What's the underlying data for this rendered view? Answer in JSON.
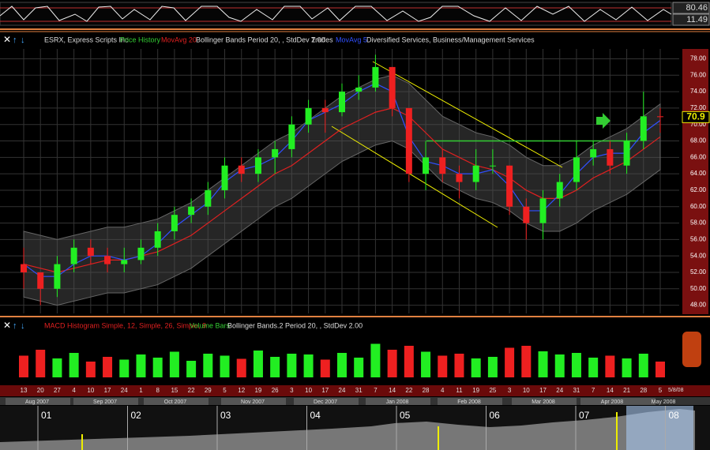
{
  "oscillator": {
    "upper_label": 80.46,
    "lower_label": 11.49
  },
  "toolbar_main": {
    "symbol": "ESRX, Express Scripts Inc",
    "price_history": "Price History",
    "bollinger": "Bollinger Bands Period 20, , StdDev 2.00",
    "trades": "Trades",
    "sector": "Diversified Services, Business/Management Services"
  },
  "chart_data": {
    "type": "candlestick",
    "grid": true,
    "categories": [
      "13",
      "20",
      "27",
      "4",
      "10",
      "17",
      "24",
      "1",
      "8",
      "15",
      "22",
      "29",
      "5",
      "12",
      "19",
      "26",
      "3",
      "10",
      "17",
      "24",
      "31",
      "7",
      "14",
      "22",
      "28",
      "4",
      "11",
      "19",
      "25",
      "3",
      "10",
      "17",
      "24",
      "31",
      "7",
      "14",
      "21",
      "28",
      "5"
    ],
    "open": [
      53,
      52,
      50,
      53,
      55,
      54,
      53,
      53.5,
      55,
      57,
      59,
      60,
      62,
      65,
      64,
      66,
      67,
      70,
      72,
      71.5,
      74,
      74.5,
      77,
      72,
      64,
      66,
      64,
      63,
      65,
      65,
      60,
      58,
      61,
      63,
      66,
      67,
      65,
      68,
      71
    ],
    "close": [
      52,
      50,
      53,
      55,
      54,
      53,
      53.5,
      55,
      57,
      59,
      60,
      62,
      65,
      64,
      66,
      67,
      70,
      72,
      71.5,
      74,
      74.5,
      77,
      72,
      64,
      66,
      64,
      63,
      65,
      65,
      60,
      58,
      61,
      63,
      66,
      67,
      65,
      68,
      71,
      70.9
    ],
    "high": [
      55,
      52,
      54,
      56,
      56,
      55,
      55,
      56,
      58,
      60,
      61,
      63,
      66,
      66,
      67,
      68,
      71,
      73,
      73,
      75,
      76,
      78.5,
      77,
      72,
      68,
      67,
      65,
      67,
      67,
      65,
      61,
      62,
      64,
      68,
      68,
      68,
      69,
      74,
      72
    ],
    "low": [
      50,
      48,
      49,
      52,
      53,
      52,
      52,
      53,
      54,
      56,
      58,
      59,
      61,
      63,
      63,
      64,
      66,
      69,
      69,
      71,
      73,
      74,
      71,
      63,
      62,
      63,
      61,
      62,
      64,
      59,
      56,
      56,
      60,
      62,
      65,
      64,
      64,
      67,
      69
    ],
    "series": [
      {
        "name": "MovAvg 20",
        "color": "#e02020",
        "values": [
          53,
          52.5,
          52,
          52.5,
          53,
          53.5,
          53.5,
          54,
          54.5,
          55.5,
          56.5,
          58,
          59.5,
          61,
          62.5,
          64,
          65,
          66.5,
          68,
          69.5,
          70.5,
          71.5,
          72,
          71,
          69,
          67,
          66,
          65,
          64.5,
          63.5,
          62,
          61,
          61,
          62,
          63.5,
          64.5,
          65.5,
          67,
          68.5
        ]
      },
      {
        "name": "MovAvg 5",
        "color": "#3050ff",
        "values": [
          53,
          51.5,
          51.5,
          53,
          54,
          54,
          53.5,
          54,
          55.5,
          57.5,
          59,
          60.5,
          63,
          64.5,
          65,
          66,
          68,
          70.5,
          71.5,
          72.5,
          74,
          75,
          74,
          68.5,
          65.5,
          65,
          64,
          64,
          64.5,
          62.5,
          59.5,
          59.5,
          61.5,
          64,
          66,
          66.5,
          66.5,
          69,
          70.5
        ]
      }
    ],
    "bands": {
      "upper": [
        57,
        56.5,
        56,
        56.5,
        57,
        57.5,
        57.5,
        58,
        58.5,
        59.5,
        60.5,
        62,
        63.5,
        65,
        66.5,
        68,
        69,
        70.5,
        72,
        73.5,
        74.5,
        75.5,
        76,
        75,
        73,
        71,
        70,
        69,
        68.5,
        67.5,
        66,
        65,
        65,
        66,
        67.5,
        68.5,
        69.5,
        71,
        72.5
      ],
      "lower": [
        49,
        48.5,
        48,
        48.5,
        49,
        49.5,
        49.5,
        50,
        50.5,
        51.5,
        52.5,
        54,
        55.5,
        57,
        58.5,
        60,
        61,
        62.5,
        64,
        65.5,
        66.5,
        67.5,
        68,
        67,
        65,
        63,
        62,
        61,
        60.5,
        59.5,
        58,
        57,
        57,
        58,
        59.5,
        60.5,
        61.5,
        63,
        64.5
      ]
    },
    "ylim": [
      47,
      79.2
    ],
    "yticks": [
      {
        "value": 48,
        "label": "48.00"
      },
      {
        "value": 50,
        "label": "50.00"
      },
      {
        "value": 52,
        "label": "52.00"
      },
      {
        "value": 54,
        "label": "54.00"
      },
      {
        "value": 56,
        "label": "56.00"
      },
      {
        "value": 58,
        "label": "58.00"
      },
      {
        "value": 60,
        "label": "60.00"
      },
      {
        "value": 62,
        "label": "62.00"
      },
      {
        "value": 64,
        "label": "64.00"
      },
      {
        "value": 66,
        "label": "66.00"
      },
      {
        "value": 68,
        "label": "68.00"
      },
      {
        "value": 70,
        "label": "70.00"
      },
      {
        "value": 72,
        "label": "72.00"
      },
      {
        "value": 74,
        "label": "74.00"
      },
      {
        "value": 76,
        "label": "76.00"
      },
      {
        "value": 78,
        "label": "78.00"
      }
    ],
    "last_price": 70.9,
    "volume": [
      55,
      70,
      48,
      62,
      40,
      52,
      45,
      58,
      50,
      65,
      42,
      60,
      55,
      47,
      68,
      52,
      60,
      58,
      45,
      62,
      50,
      85,
      70,
      80,
      65,
      55,
      60,
      48,
      52,
      75,
      80,
      66,
      58,
      62,
      50,
      55,
      48,
      60,
      40
    ],
    "volume_lim": [
      0,
      100
    ]
  },
  "toolbar_lower": {
    "macd": "MACD Histogram Simple, 12, Simple, 26, Simple, 9",
    "volume": "Volume Bars",
    "bollinger2": "Bollinger Bands.2 Period 20, , StdDev 2.00"
  },
  "date_axis": {
    "end_date": "5/8/08",
    "months": [
      "Aug 2007",
      "Sep 2007",
      "Oct 2007",
      "Nov 2007",
      "Dec 2007",
      "Jan 2008",
      "Feb 2008",
      "Mar 2008",
      "Apr 2008",
      "May 2008"
    ]
  },
  "navigator": {
    "labels": [
      "01",
      "02",
      "03",
      "04",
      "05",
      "06",
      "07",
      "08"
    ]
  }
}
